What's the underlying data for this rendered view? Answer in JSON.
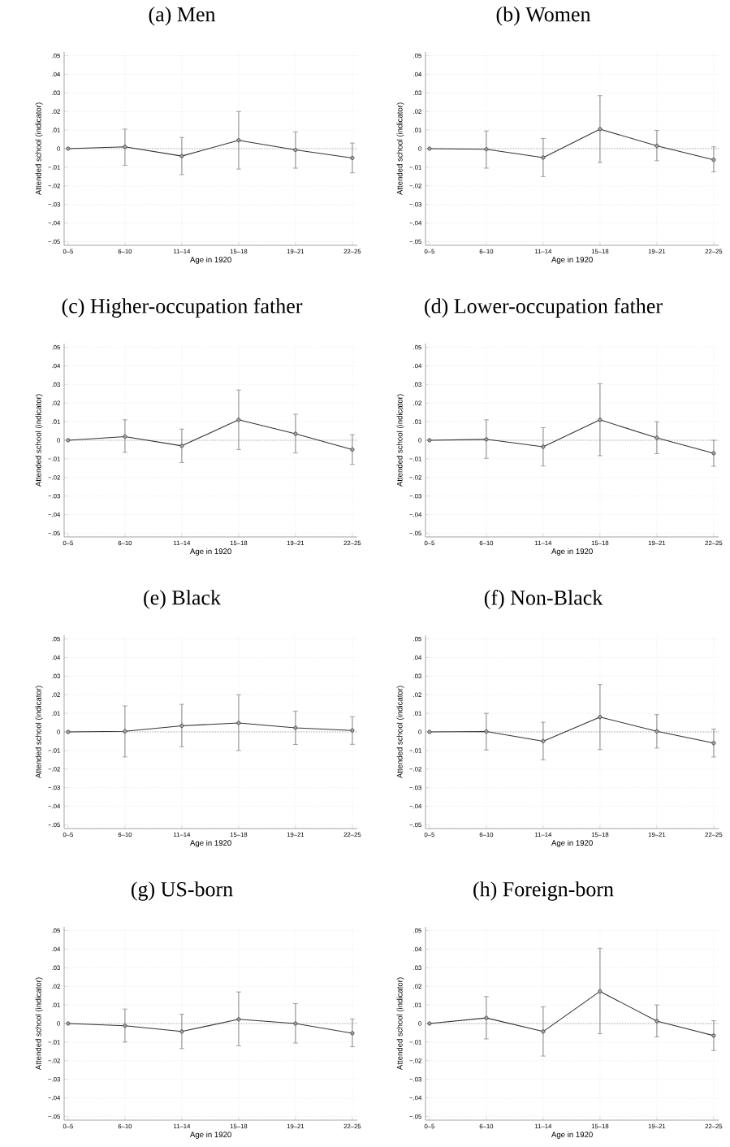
{
  "chart_data": [
    {
      "type": "line",
      "title": "(a) Men",
      "xlabel": "Age in 1920",
      "ylabel": "Attended school (indicator)",
      "categories": [
        "0–5",
        "6–10",
        "11–14",
        "15–18",
        "19–21",
        "22–25"
      ],
      "series": [
        {
          "color": "#333333",
          "values": [
            0,
            0.001,
            -0.004,
            0.0045,
            -0.0007,
            -0.005
          ],
          "errors": [
            null,
            [
              -0.009,
              0.0105
            ],
            [
              -0.014,
              0.006
            ],
            [
              -0.011,
              0.02
            ],
            [
              -0.0105,
              0.009
            ],
            [
              -0.013,
              0.003
            ]
          ]
        }
      ],
      "ylim": [
        -0.052,
        0.052
      ],
      "yticks": [
        {
          "value": -0.05,
          "label": "−.05"
        },
        {
          "value": -0.04,
          "label": "−.04"
        },
        {
          "value": -0.03,
          "label": "−.03"
        },
        {
          "value": -0.02,
          "label": "−.02"
        },
        {
          "value": -0.01,
          "label": "−.01"
        },
        0,
        {
          "value": 0.01,
          "label": ".01"
        },
        {
          "value": 0.02,
          "label": ".02"
        },
        {
          "value": 0.03,
          "label": ".03"
        },
        {
          "value": 0.04,
          "label": ".04"
        },
        {
          "value": 0.05,
          "label": ".05"
        }
      ],
      "grid": true,
      "marker": "circle",
      "ref_lines": [
        {
          "axis": "y",
          "value": 0,
          "line_style": "dotted"
        }
      ]
    },
    {
      "type": "line",
      "title": "(b) Women",
      "xlabel": "Age in 1920",
      "ylabel": "Attended school (indicator)",
      "categories": [
        "0–5",
        "6–10",
        "11–14",
        "15–18",
        "19–21",
        "22–25"
      ],
      "series": [
        {
          "color": "#333333",
          "values": [
            0,
            -0.0003,
            -0.0048,
            0.0105,
            0.0015,
            -0.006
          ],
          "errors": [
            null,
            [
              -0.0105,
              0.0095
            ],
            [
              -0.015,
              0.0055
            ],
            [
              -0.0075,
              0.0285
            ],
            [
              -0.0065,
              0.0098
            ],
            [
              -0.0125,
              0.001
            ]
          ]
        }
      ],
      "ylim": [
        -0.052,
        0.052
      ],
      "yticks": [
        {
          "value": -0.05,
          "label": "−.05"
        },
        {
          "value": -0.04,
          "label": "−.04"
        },
        {
          "value": -0.03,
          "label": "−.03"
        },
        {
          "value": -0.02,
          "label": "−.02"
        },
        {
          "value": -0.01,
          "label": "−.01"
        },
        0,
        {
          "value": 0.01,
          "label": ".01"
        },
        {
          "value": 0.02,
          "label": ".02"
        },
        {
          "value": 0.03,
          "label": ".03"
        },
        {
          "value": 0.04,
          "label": ".04"
        },
        {
          "value": 0.05,
          "label": ".05"
        }
      ],
      "grid": true,
      "marker": "circle",
      "ref_lines": [
        {
          "axis": "y",
          "value": 0,
          "line_style": "dotted"
        }
      ]
    },
    {
      "type": "line",
      "title": "(c) Higher-occupation father",
      "xlabel": "Age in 1920",
      "ylabel": "Attended school (indicator)",
      "categories": [
        "0–5",
        "6–10",
        "11–14",
        "15–18",
        "19–21",
        "22–25"
      ],
      "series": [
        {
          "color": "#333333",
          "values": [
            0,
            0.002,
            -0.003,
            0.011,
            0.0035,
            -0.005
          ],
          "errors": [
            null,
            [
              -0.0065,
              0.011
            ],
            [
              -0.012,
              0.006
            ],
            [
              -0.005,
              0.027
            ],
            [
              -0.0068,
              0.014
            ],
            [
              -0.013,
              0.003
            ]
          ]
        }
      ],
      "ylim": [
        -0.052,
        0.052
      ],
      "yticks": [
        {
          "value": -0.05,
          "label": "−.05"
        },
        {
          "value": -0.04,
          "label": "−.04"
        },
        {
          "value": -0.03,
          "label": "−.03"
        },
        {
          "value": -0.02,
          "label": "−.02"
        },
        {
          "value": -0.01,
          "label": "−.01"
        },
        0,
        {
          "value": 0.01,
          "label": ".01"
        },
        {
          "value": 0.02,
          "label": ".02"
        },
        {
          "value": 0.03,
          "label": ".03"
        },
        {
          "value": 0.04,
          "label": ".04"
        },
        {
          "value": 0.05,
          "label": ".05"
        }
      ],
      "grid": true,
      "marker": "circle",
      "ref_lines": [
        {
          "axis": "y",
          "value": 0,
          "line_style": "dotted"
        }
      ]
    },
    {
      "type": "line",
      "title": "(d) Lower-occupation father",
      "xlabel": "Age in 1920",
      "ylabel": "Attended school (indicator)",
      "categories": [
        "0–5",
        "6–10",
        "11–14",
        "15–18",
        "19–21",
        "22–25"
      ],
      "series": [
        {
          "color": "#333333",
          "values": [
            0,
            0.0005,
            -0.0035,
            0.011,
            0.0013,
            -0.007
          ],
          "errors": [
            null,
            [
              -0.0097,
              0.011
            ],
            [
              -0.0138,
              0.0068
            ],
            [
              -0.0083,
              0.0305
            ],
            [
              -0.0072,
              0.01
            ],
            [
              -0.014,
              0
            ]
          ]
        }
      ],
      "ylim": [
        -0.052,
        0.052
      ],
      "yticks": [
        {
          "value": -0.05,
          "label": "−.05"
        },
        {
          "value": -0.04,
          "label": "−.04"
        },
        {
          "value": -0.03,
          "label": "−.03"
        },
        {
          "value": -0.02,
          "label": "−.02"
        },
        {
          "value": -0.01,
          "label": "−.01"
        },
        0,
        {
          "value": 0.01,
          "label": ".01"
        },
        {
          "value": 0.02,
          "label": ".02"
        },
        {
          "value": 0.03,
          "label": ".03"
        },
        {
          "value": 0.04,
          "label": ".04"
        },
        {
          "value": 0.05,
          "label": ".05"
        }
      ],
      "grid": true,
      "marker": "circle",
      "ref_lines": [
        {
          "axis": "y",
          "value": 0,
          "line_style": "dotted"
        }
      ]
    },
    {
      "type": "line",
      "title": "(e) Black",
      "xlabel": "Age in 1920",
      "ylabel": "Attended school (indicator)",
      "categories": [
        "0–5",
        "6–10",
        "11–14",
        "15–18",
        "19–21",
        "22–25"
      ],
      "series": [
        {
          "color": "#333333",
          "values": [
            0,
            0.0003,
            0.0033,
            0.0048,
            0.0022,
            0.0008
          ],
          "errors": [
            null,
            [
              -0.0135,
              0.014
            ],
            [
              -0.008,
              0.0148
            ],
            [
              -0.01,
              0.02
            ],
            [
              -0.0068,
              0.0112
            ],
            [
              -0.0067,
              0.0082
            ]
          ]
        }
      ],
      "ylim": [
        -0.052,
        0.052
      ],
      "yticks": [
        {
          "value": -0.05,
          "label": "−.05"
        },
        {
          "value": -0.04,
          "label": "−.04"
        },
        {
          "value": -0.03,
          "label": "−.03"
        },
        {
          "value": -0.02,
          "label": "−.02"
        },
        {
          "value": -0.01,
          "label": "−.01"
        },
        0,
        {
          "value": 0.01,
          "label": ".01"
        },
        {
          "value": 0.02,
          "label": ".02"
        },
        {
          "value": 0.03,
          "label": ".03"
        },
        {
          "value": 0.04,
          "label": ".04"
        },
        {
          "value": 0.05,
          "label": ".05"
        }
      ],
      "grid": true,
      "marker": "circle",
      "ref_lines": [
        {
          "axis": "y",
          "value": 0,
          "line_style": "dotted"
        }
      ]
    },
    {
      "type": "line",
      "title": "(f) Non-Black",
      "xlabel": "Age in 1920",
      "ylabel": "Attended school (indicator)",
      "categories": [
        "0–5",
        "6–10",
        "11–14",
        "15–18",
        "19–21",
        "22–25"
      ],
      "series": [
        {
          "color": "#333333",
          "values": [
            0,
            0.0002,
            -0.005,
            0.008,
            0.0003,
            -0.006
          ],
          "errors": [
            null,
            [
              -0.0097,
              0.01
            ],
            [
              -0.015,
              0.0052
            ],
            [
              -0.0095,
              0.0255
            ],
            [
              -0.0087,
              0.0093
            ],
            [
              -0.0135,
              0.0015
            ]
          ]
        }
      ],
      "ylim": [
        -0.052,
        0.052
      ],
      "yticks": [
        {
          "value": -0.05,
          "label": "−.05"
        },
        {
          "value": -0.04,
          "label": "−.04"
        },
        {
          "value": -0.03,
          "label": "−.03"
        },
        {
          "value": -0.02,
          "label": "−.02"
        },
        {
          "value": -0.01,
          "label": "−.01"
        },
        0,
        {
          "value": 0.01,
          "label": ".01"
        },
        {
          "value": 0.02,
          "label": ".02"
        },
        {
          "value": 0.03,
          "label": ".03"
        },
        {
          "value": 0.04,
          "label": ".04"
        },
        {
          "value": 0.05,
          "label": ".05"
        }
      ],
      "grid": true,
      "marker": "circle",
      "ref_lines": [
        {
          "axis": "y",
          "value": 0,
          "line_style": "dotted"
        }
      ]
    },
    {
      "type": "line",
      "title": "(g) US-born",
      "xlabel": "Age in 1920",
      "ylabel": "Attended school (indicator)",
      "categories": [
        "0–5",
        "6–10",
        "11–14",
        "15–18",
        "19–21",
        "22–25"
      ],
      "series": [
        {
          "color": "#333333",
          "values": [
            0,
            -0.0012,
            -0.0043,
            0.0023,
            0,
            -0.0052
          ],
          "errors": [
            null,
            [
              -0.01,
              0.0078
            ],
            [
              -0.0135,
              0.005
            ],
            [
              -0.012,
              0.017
            ],
            [
              -0.0105,
              0.0107
            ],
            [
              -0.0125,
              0.0025
            ]
          ]
        }
      ],
      "ylim": [
        -0.052,
        0.052
      ],
      "yticks": [
        {
          "value": -0.05,
          "label": "−.05"
        },
        {
          "value": -0.04,
          "label": "−.04"
        },
        {
          "value": -0.03,
          "label": "−.03"
        },
        {
          "value": -0.02,
          "label": "−.02"
        },
        {
          "value": -0.01,
          "label": "−.01"
        },
        0,
        {
          "value": 0.01,
          "label": ".01"
        },
        {
          "value": 0.02,
          "label": ".02"
        },
        {
          "value": 0.03,
          "label": ".03"
        },
        {
          "value": 0.04,
          "label": ".04"
        },
        {
          "value": 0.05,
          "label": ".05"
        }
      ],
      "grid": true,
      "marker": "circle",
      "ref_lines": [
        {
          "axis": "y",
          "value": 0,
          "line_style": "dotted"
        }
      ]
    },
    {
      "type": "line",
      "title": "(h) Foreign-born",
      "xlabel": "Age in 1920",
      "ylabel": "Attended school (indicator)",
      "categories": [
        "0–5",
        "6–10",
        "11–14",
        "15–18",
        "19–21",
        "22–25"
      ],
      "series": [
        {
          "color": "#333333",
          "values": [
            0,
            0.003,
            -0.0043,
            0.0173,
            0.0013,
            -0.0065
          ],
          "errors": [
            null,
            [
              -0.0083,
              0.0145
            ],
            [
              -0.0175,
              0.009
            ],
            [
              -0.0055,
              0.0405
            ],
            [
              -0.0072,
              0.01
            ],
            [
              -0.0145,
              0.0015
            ]
          ]
        }
      ],
      "ylim": [
        -0.052,
        0.052
      ],
      "yticks": [
        {
          "value": -0.05,
          "label": "−.05"
        },
        {
          "value": -0.04,
          "label": "−.04"
        },
        {
          "value": -0.03,
          "label": "−.03"
        },
        {
          "value": -0.02,
          "label": "−.02"
        },
        {
          "value": -0.01,
          "label": "−.01"
        },
        0,
        {
          "value": 0.01,
          "label": ".01"
        },
        {
          "value": 0.02,
          "label": ".02"
        },
        {
          "value": 0.03,
          "label": ".03"
        },
        {
          "value": 0.04,
          "label": ".04"
        },
        {
          "value": 0.05,
          "label": ".05"
        }
      ],
      "grid": true,
      "marker": "circle",
      "ref_lines": [
        {
          "axis": "y",
          "value": 0,
          "line_style": "dotted"
        }
      ]
    }
  ]
}
